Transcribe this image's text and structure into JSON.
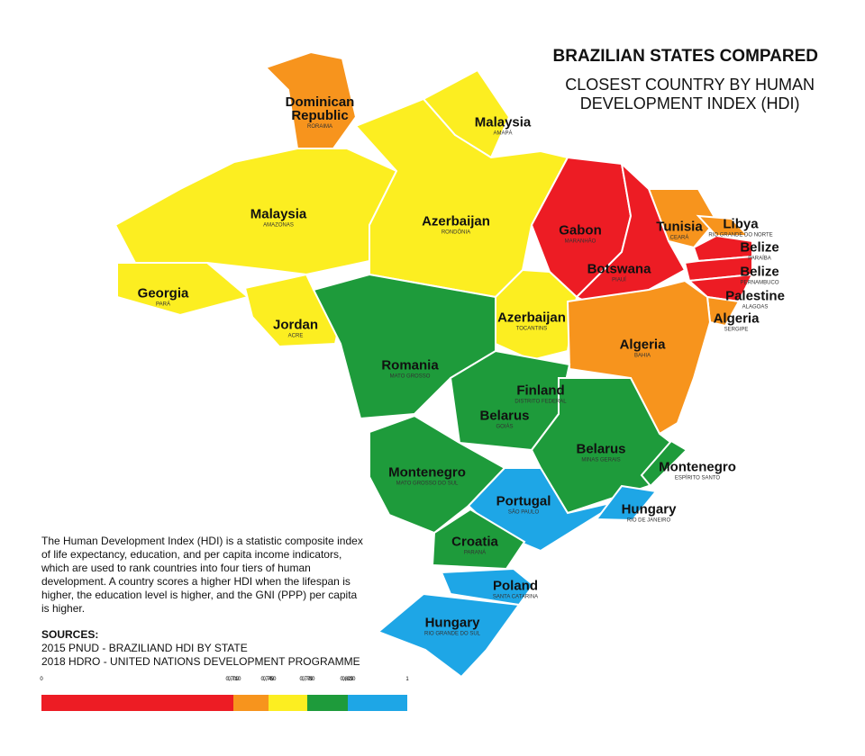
{
  "header": {
    "title": "BRAZILIAN STATES COMPARED",
    "subtitle": [
      "CLOSEST COUNTRY BY HUMAN",
      "DEVELOPMENT INDEX (HDI)"
    ]
  },
  "states": [
    {
      "country": "Dominican Republic",
      "state": "Roraima",
      "color": "#f7941d"
    },
    {
      "country": "Malaysia",
      "state": "Amapá",
      "color": "#fcee21"
    },
    {
      "country": "Malaysia",
      "state": "Amazonas",
      "color": "#fcee21"
    },
    {
      "country": "Georgia",
      "state": "Pará",
      "color": "#fcee21"
    },
    {
      "country": "Jordan",
      "state": "Acre",
      "color": "#fcee21"
    },
    {
      "country": "Azerbaijan",
      "state": "Rondônia",
      "color": "#fcee21"
    },
    {
      "country": "Gabon",
      "state": "Maranhão",
      "color": "#ed1c24"
    },
    {
      "country": "Tunisia",
      "state": "Ceará",
      "color": "#f7941d"
    },
    {
      "country": "Libya",
      "state": "Rio Grande do Norte",
      "color": "#f7941d"
    },
    {
      "country": "Belize",
      "state": "Paraíba",
      "color": "#ed1c24"
    },
    {
      "country": "Botswana",
      "state": "Piauí",
      "color": "#ed1c24"
    },
    {
      "country": "Belize",
      "state": "Pernambuco",
      "color": "#ed1c24"
    },
    {
      "country": "Palestine",
      "state": "Alagoas",
      "color": "#ed1c24"
    },
    {
      "country": "Algeria",
      "state": "Sergipe",
      "color": "#f7941d"
    },
    {
      "country": "Azerbaijan",
      "state": "Tocantins",
      "color": "#fcee21"
    },
    {
      "country": "Algeria",
      "state": "Bahia",
      "color": "#f7941d"
    },
    {
      "country": "Romania",
      "state": "Mato Grosso",
      "color": "#1e9b3b"
    },
    {
      "country": "Finland",
      "state": "Distrito Federal",
      "color": "#1ea6e6"
    },
    {
      "country": "Belarus",
      "state": "Goiás",
      "color": "#1e9b3b"
    },
    {
      "country": "Belarus",
      "state": "Minas Gerais",
      "color": "#1e9b3b"
    },
    {
      "country": "Montenegro",
      "state": "Mato Grosso do Sul",
      "color": "#1e9b3b"
    },
    {
      "country": "Montenegro",
      "state": "Espírito Santo",
      "color": "#1e9b3b"
    },
    {
      "country": "Portugal",
      "state": "São Paulo",
      "color": "#1ea6e6"
    },
    {
      "country": "Hungary",
      "state": "Rio de Janeiro",
      "color": "#1ea6e6"
    },
    {
      "country": "Croatia",
      "state": "Paraná",
      "color": "#1e9b3b"
    },
    {
      "country": "Poland",
      "state": "Santa Catarina",
      "color": "#1ea6e6"
    },
    {
      "country": "Hungary",
      "state": "Rio Grande do Sul",
      "color": "#1ea6e6"
    }
  ],
  "description": "The Human Development Index (HDI) is a statistic composite index of life expectancy, education, and per capita income indicators, which are used to rank countries into four tiers of human development. A country scores a higher HDI when the lifespan is higher, the education level is higher, and the GNI (PPP) per capita is higher.",
  "sources": {
    "title": "SOURCES:",
    "lines": [
      "2015 PNUD - BRAZILIAND HDI BY STATE",
      "2018 HDRO - UNITED NATIONS DEVELOPMENT PROGRAMME"
    ]
  },
  "scale": {
    "labels": [
      "0",
      "0,709",
      "0,710",
      "0,749",
      "0,750",
      "0,779",
      "0,780",
      "0,829",
      "0,830",
      "1"
    ],
    "colors": [
      "#ed1c24",
      "#f7941d",
      "#fcee21",
      "#1e9b3b",
      "#1ea6e6"
    ]
  }
}
